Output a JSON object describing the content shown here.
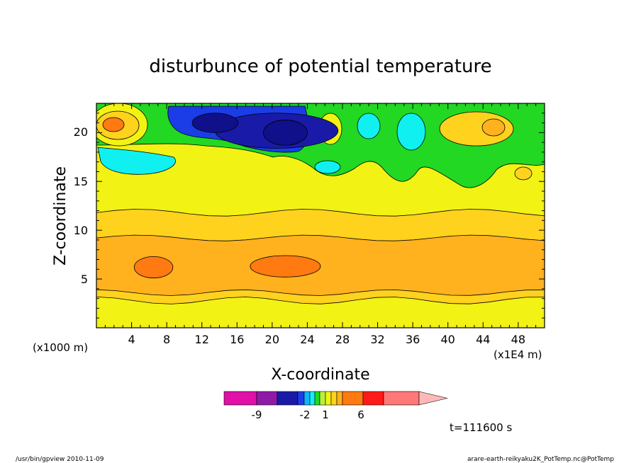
{
  "chart_data": {
    "type": "heatmap",
    "title": "disturbunce of potential temperature",
    "xlabel": "X-coordinate",
    "ylabel": "Z-coordinate",
    "x_unit_left": "(x1000 m)",
    "x_unit_right": "(x1E4 m)",
    "xlim": [
      0,
      51
    ],
    "ylim": [
      0,
      23
    ],
    "x_ticks": [
      "4",
      "8",
      "12",
      "16",
      "20",
      "24",
      "28",
      "32",
      "36",
      "40",
      "44",
      "48"
    ],
    "y_ticks": [
      "5",
      "10",
      "15",
      "20"
    ],
    "colorbar": {
      "colors": [
        "#e010a8",
        "#8e1aa8",
        "#1a1aa8",
        "#1a3de8",
        "#12b4ff",
        "#10f0f0",
        "#22d822",
        "#b6f23a",
        "#f2f214",
        "#ffd21e",
        "#ffb21e",
        "#ff7a10",
        "#ff1a1a",
        "#ff7878",
        "#ffb8b8"
      ],
      "tick_labels": [
        "-9",
        "-2",
        "1",
        "6"
      ]
    },
    "bands": [
      {
        "level": 1,
        "color": "#ffd21e"
      },
      {
        "level": 1.5,
        "color": "#ffb21e"
      },
      {
        "level": 2,
        "color": "#ff7a10"
      }
    ],
    "blobs": [
      {
        "x": 20.5,
        "z": 20.2,
        "rx": 7.0,
        "rz": 1.8,
        "color": "#1a1aa8"
      },
      {
        "x": 13.5,
        "z": 21.0,
        "rx": 2.6,
        "rz": 1.0,
        "color": "#10108a"
      },
      {
        "x": 21.5,
        "z": 20.0,
        "rx": 2.5,
        "rz": 1.3,
        "color": "#10108a"
      },
      {
        "x": 6.5,
        "z": 6.2,
        "rx": 2.2,
        "rz": 1.1,
        "color": "#ff7a10"
      },
      {
        "x": 21.5,
        "z": 6.3,
        "rx": 4.0,
        "rz": 1.1,
        "color": "#ff7a10"
      }
    ]
  },
  "annotations": {
    "time": "t=111600 s",
    "footer_left": "/usr/bin/gpview   2010-11-09",
    "footer_right": "arare-earth-reikyaku2K_PotTemp.nc@PotTemp"
  }
}
